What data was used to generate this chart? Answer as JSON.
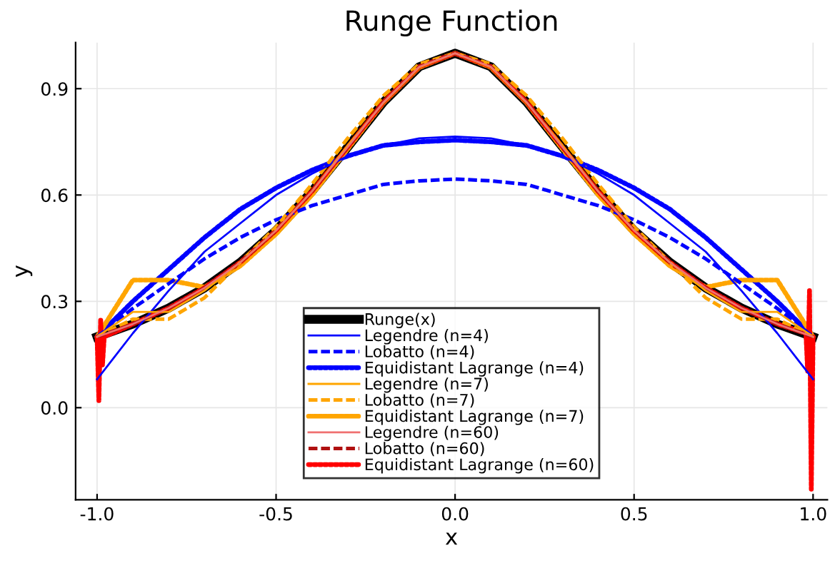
{
  "chart_data": {
    "type": "line",
    "title": "Runge Function",
    "xlabel": "x",
    "ylabel": "y",
    "x": [
      -1.0,
      -0.9,
      -0.8,
      -0.7,
      -0.6,
      -0.5,
      -0.4,
      -0.3,
      -0.2,
      -0.1,
      0.0,
      0.1,
      0.2,
      0.3,
      0.4,
      0.5,
      0.6,
      0.7,
      0.8,
      0.9,
      1.0
    ],
    "series": [
      {
        "name": "Runge(x)",
        "color": "#000000",
        "line_style": "solid",
        "values": [
          0.2,
          0.236,
          0.281,
          0.338,
          0.41,
          0.5,
          0.61,
          0.735,
          0.862,
          0.962,
          1.0,
          0.962,
          0.862,
          0.735,
          0.61,
          0.5,
          0.41,
          0.338,
          0.281,
          0.236,
          0.2
        ]
      },
      {
        "name": "Legendre (n=4)",
        "color": "#0000ff",
        "line_style": "solid",
        "values": [
          0.08,
          0.21,
          0.33,
          0.44,
          0.52,
          0.6,
          0.66,
          0.71,
          0.74,
          0.76,
          0.765,
          0.76,
          0.74,
          0.71,
          0.66,
          0.6,
          0.52,
          0.44,
          0.33,
          0.21,
          0.08
        ]
      },
      {
        "name": "Lobatto (n=4)",
        "color": "#0000ff",
        "line_style": "dashed",
        "values": [
          0.2,
          0.28,
          0.35,
          0.42,
          0.48,
          0.53,
          0.57,
          0.6,
          0.63,
          0.64,
          0.645,
          0.64,
          0.63,
          0.6,
          0.57,
          0.53,
          0.48,
          0.42,
          0.35,
          0.28,
          0.2
        ]
      },
      {
        "name": "Equidistant Lagrange (n=4)",
        "color": "#0000ff",
        "line_style": "dotted",
        "values": [
          0.2,
          0.3,
          0.39,
          0.48,
          0.56,
          0.62,
          0.67,
          0.71,
          0.74,
          0.75,
          0.755,
          0.75,
          0.74,
          0.71,
          0.67,
          0.62,
          0.56,
          0.48,
          0.39,
          0.3,
          0.2
        ]
      },
      {
        "name": "Legendre (n=7)",
        "color": "#ffa500",
        "line_style": "solid",
        "values": [
          0.2,
          0.27,
          0.27,
          0.33,
          0.41,
          0.5,
          0.61,
          0.74,
          0.86,
          0.96,
          1.0,
          0.96,
          0.86,
          0.74,
          0.61,
          0.5,
          0.41,
          0.33,
          0.27,
          0.27,
          0.2
        ]
      },
      {
        "name": "Lobatto (n=7)",
        "color": "#ffa500",
        "line_style": "dashed",
        "values": [
          0.2,
          0.25,
          0.25,
          0.31,
          0.41,
          0.51,
          0.63,
          0.76,
          0.88,
          0.97,
          1.0,
          0.97,
          0.88,
          0.76,
          0.63,
          0.51,
          0.41,
          0.31,
          0.25,
          0.25,
          0.2
        ]
      },
      {
        "name": "Equidistant Lagrange (n=7)",
        "color": "#ffa500",
        "line_style": "dotted",
        "values": [
          0.2,
          0.36,
          0.36,
          0.34,
          0.4,
          0.49,
          0.6,
          0.73,
          0.86,
          0.96,
          1.0,
          0.96,
          0.86,
          0.73,
          0.6,
          0.49,
          0.4,
          0.34,
          0.36,
          0.36,
          0.2
        ]
      },
      {
        "name": "Legendre (n=60)",
        "color": "#f07070",
        "line_style": "solid",
        "values": [
          0.2,
          0.236,
          0.281,
          0.338,
          0.41,
          0.5,
          0.61,
          0.735,
          0.862,
          0.962,
          1.0,
          0.962,
          0.862,
          0.735,
          0.61,
          0.5,
          0.41,
          0.338,
          0.281,
          0.236,
          0.2
        ]
      },
      {
        "name": "Lobatto (n=60)",
        "color": "#b01010",
        "line_style": "dashed",
        "values": [
          0.2,
          0.236,
          0.281,
          0.338,
          0.41,
          0.5,
          0.61,
          0.735,
          0.862,
          0.962,
          1.0,
          0.962,
          0.862,
          0.735,
          0.61,
          0.5,
          0.41,
          0.338,
          0.281,
          0.236,
          0.2
        ]
      },
      {
        "name": "Equidistant Lagrange (n=60)",
        "color": "#ff0000",
        "line_style": "dotted",
        "x": [
          -1.0,
          -0.995,
          -0.99,
          -0.985,
          -0.98,
          -0.9,
          -0.8,
          -0.7,
          -0.6,
          -0.5,
          -0.4,
          -0.3,
          -0.2,
          -0.1,
          0.0,
          0.1,
          0.2,
          0.3,
          0.4,
          0.5,
          0.6,
          0.7,
          0.8,
          0.9,
          0.98,
          0.985,
          0.99,
          0.995,
          1.0
        ],
        "values": [
          0.2,
          0.02,
          0.25,
          0.12,
          0.2,
          0.236,
          0.281,
          0.338,
          0.41,
          0.5,
          0.61,
          0.735,
          0.862,
          0.962,
          1.0,
          0.962,
          0.862,
          0.735,
          0.61,
          0.5,
          0.41,
          0.338,
          0.281,
          0.236,
          0.21,
          0.1,
          0.33,
          -0.23,
          0.2
        ]
      }
    ],
    "xlim": [
      -1.06,
      1.04
    ],
    "ylim": [
      -0.26,
      1.03
    ],
    "xticks": [
      {
        "value": -1.0,
        "label": "-1.0"
      },
      {
        "value": -0.5,
        "label": "-0.5"
      },
      {
        "value": 0.0,
        "label": "0.0"
      },
      {
        "value": 0.5,
        "label": "0.5"
      },
      {
        "value": 1.0,
        "label": "1.0"
      }
    ],
    "yticks": [
      {
        "value": 0.0,
        "label": "0.0"
      },
      0.3,
      0.6,
      0.9
    ],
    "grid": true,
    "legend": "bottom",
    "marker": "none"
  }
}
